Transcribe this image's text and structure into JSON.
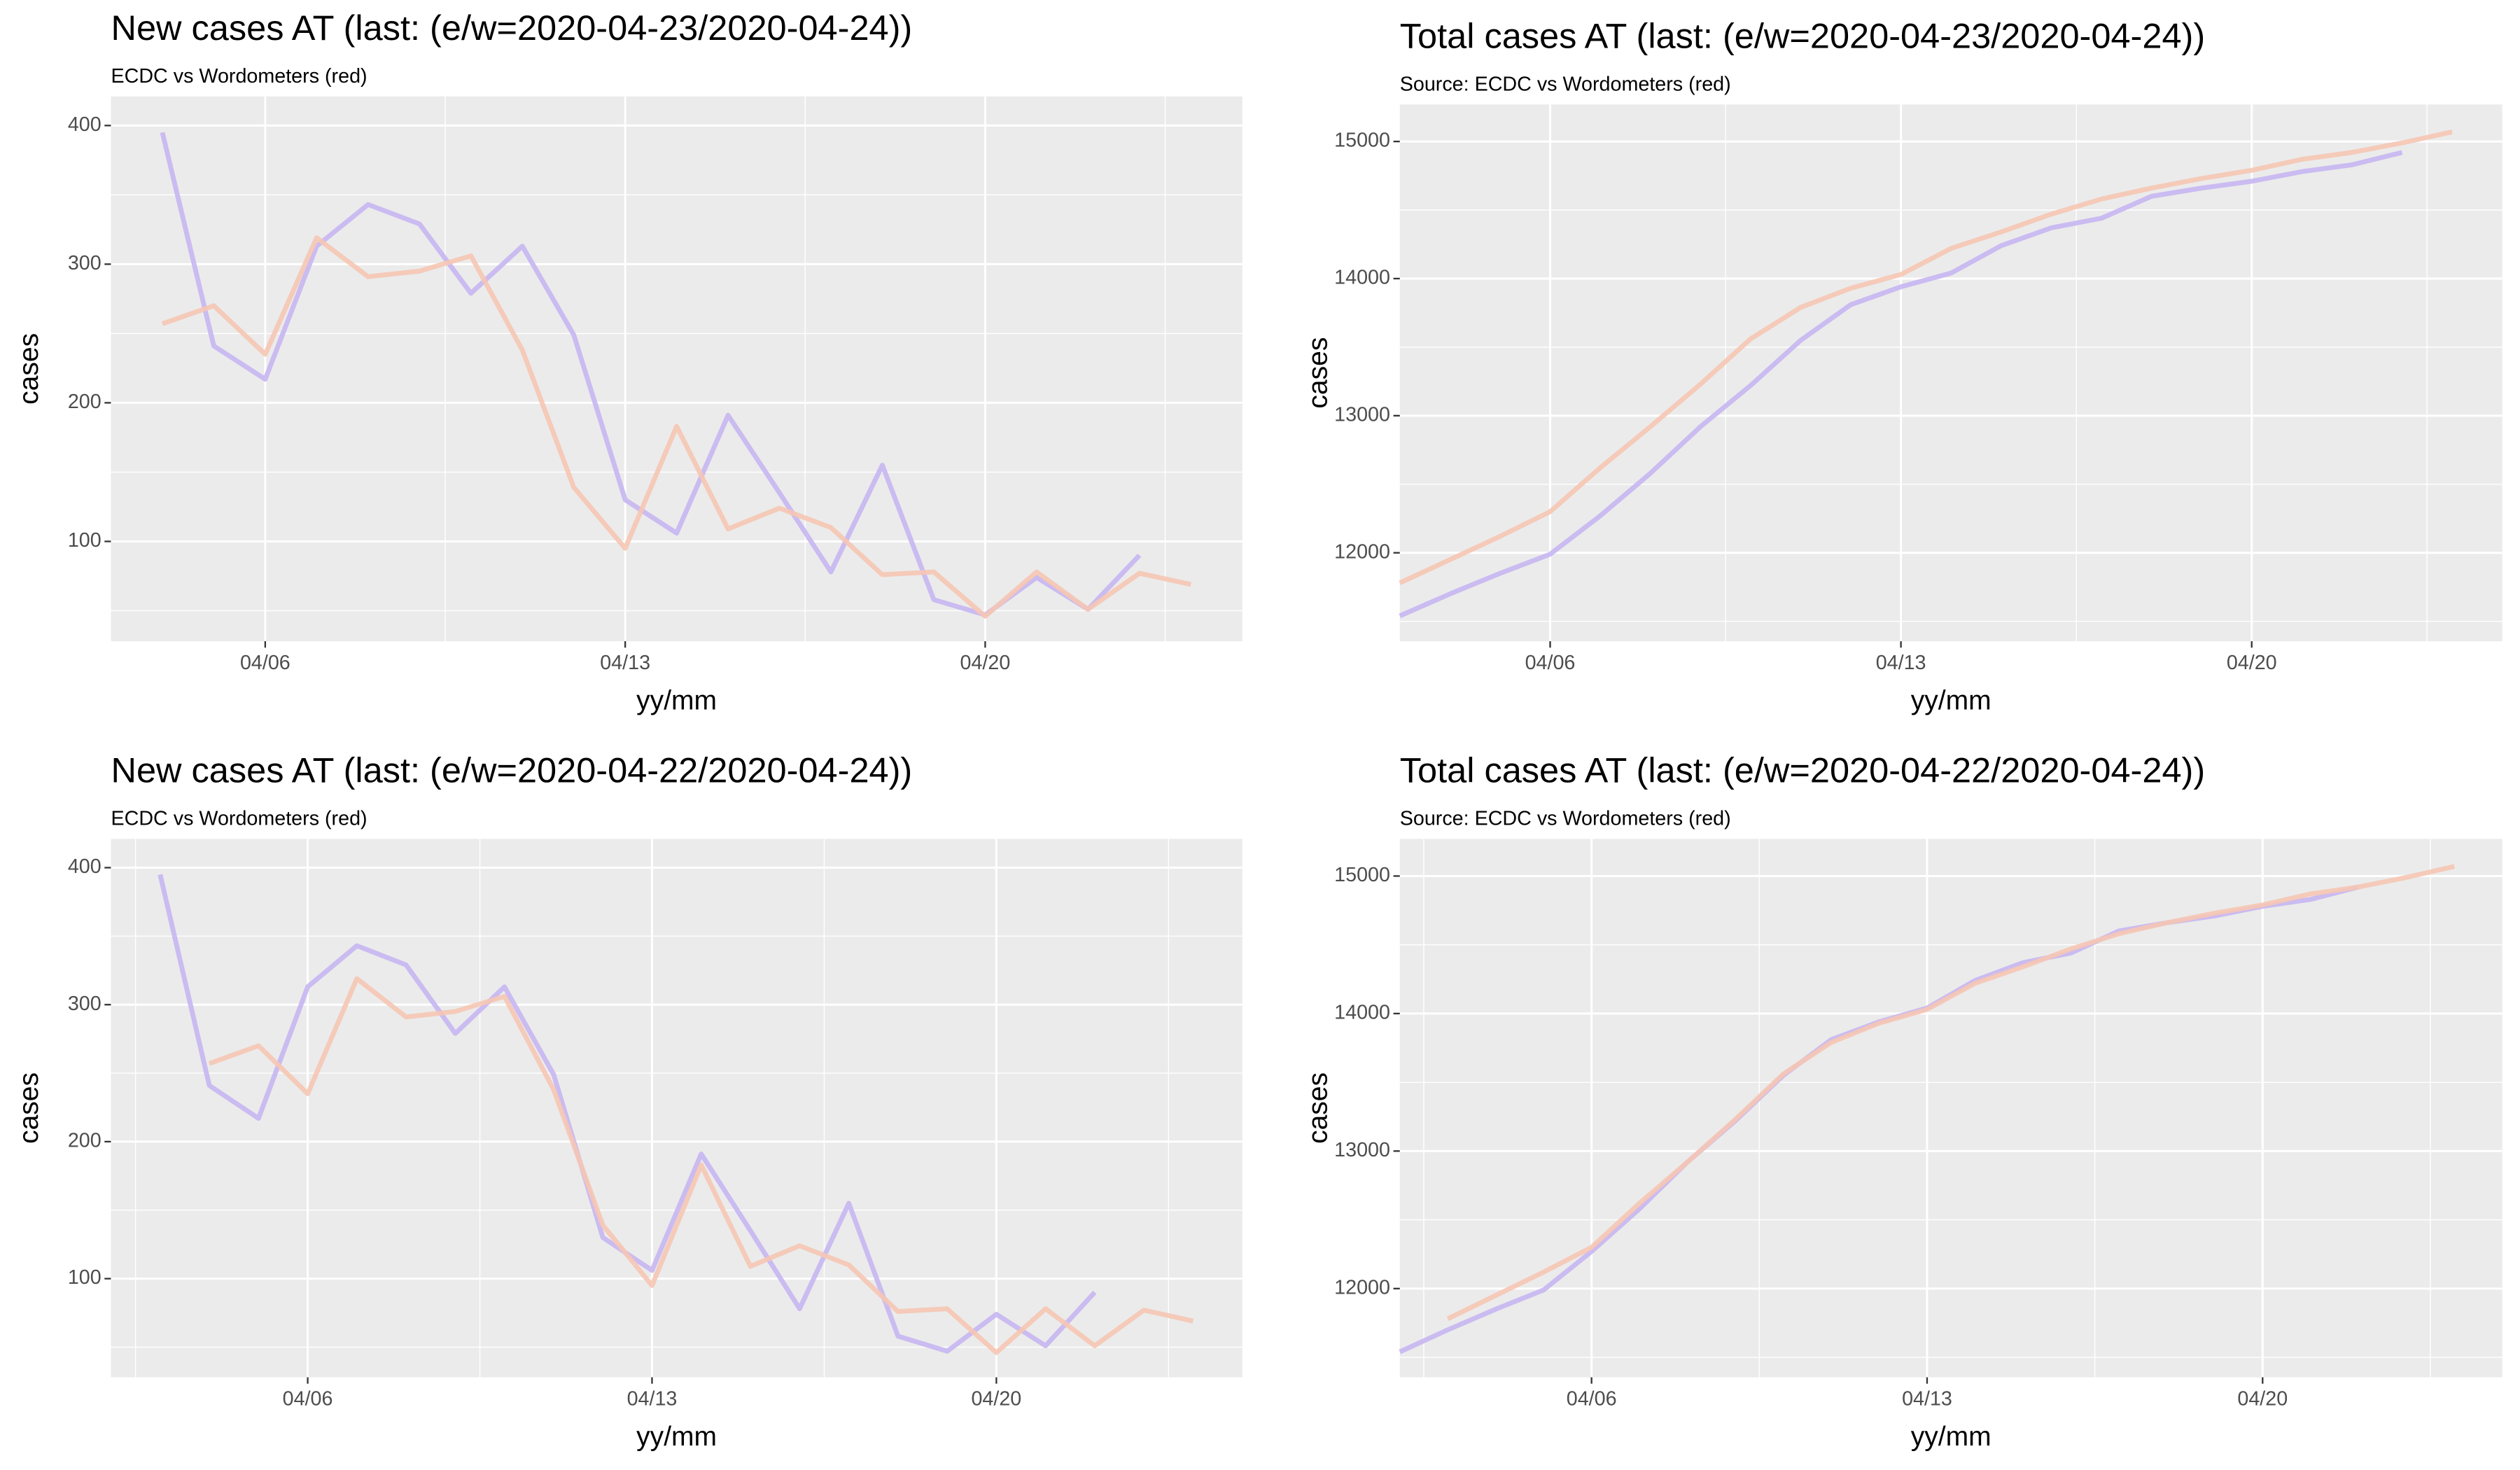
{
  "chart_data": [
    {
      "type": "line",
      "title": "New cases AT (last: (e/w=2020-04-23/2020-04-24))",
      "subtitle": "ECDC vs Wordometers (red)",
      "xlabel": "yy/mm",
      "ylabel": "cases",
      "xlim": [
        3,
        25
      ],
      "xticks": [
        {
          "value": 6,
          "label": "04/06"
        },
        {
          "value": 13,
          "label": "04/13"
        },
        {
          "value": 20,
          "label": "04/20"
        }
      ],
      "ylim": [
        28,
        421
      ],
      "yticks": [
        100,
        200,
        300,
        400
      ],
      "grid": true,
      "series": [
        {
          "color": "#c7b6f2",
          "x": [
            4,
            5,
            6,
            7,
            8,
            9,
            10,
            11,
            12,
            13,
            14,
            15,
            16,
            17,
            18,
            19,
            20,
            21,
            22,
            23
          ],
          "values": [
            395,
            241,
            217,
            313,
            343,
            329,
            279,
            313,
            249,
            130,
            106,
            191,
            135,
            78,
            155,
            58,
            47,
            74,
            51,
            90
          ]
        },
        {
          "color": "#f6c6b4",
          "x": [
            4,
            5,
            6,
            7,
            8,
            9,
            10,
            11,
            12,
            13,
            14,
            15,
            16,
            17,
            18,
            19,
            20,
            21,
            22,
            23,
            24
          ],
          "values": [
            257,
            270,
            235,
            319,
            291,
            295,
            306,
            238,
            139,
            95,
            183,
            109,
            124,
            110,
            76,
            78,
            46,
            78,
            51,
            77,
            69
          ]
        }
      ]
    },
    {
      "type": "line",
      "title": "Total cases AT (last: (e/w=2020-04-23/2020-04-24))",
      "subtitle": "Source: ECDC vs Wordometers (red)",
      "xlabel": "yy/mm",
      "ylabel": "cases",
      "xlim": [
        3,
        25
      ],
      "xticks": [
        {
          "value": 6,
          "label": "04/06"
        },
        {
          "value": 13,
          "label": "04/13"
        },
        {
          "value": 20,
          "label": "04/20"
        }
      ],
      "ylim": [
        11355,
        15270
      ],
      "yticks": [
        12000,
        13000,
        14000,
        15000
      ],
      "grid": true,
      "series": [
        {
          "color": "#c7b6f2",
          "x": [
            3,
            4,
            5,
            6,
            7,
            8,
            9,
            10,
            11,
            12,
            13,
            14,
            15,
            16,
            17,
            18,
            19,
            20,
            21,
            22,
            23
          ],
          "values": [
            11540,
            11700,
            11850,
            11990,
            12270,
            12580,
            12920,
            13220,
            13550,
            13810,
            13940,
            14040,
            14240,
            14370,
            14440,
            14600,
            14660,
            14710,
            14780,
            14830,
            14920
          ]
        },
        {
          "color": "#f6c6b4",
          "x": [
            3,
            4,
            5,
            6,
            7,
            8,
            9,
            10,
            11,
            12,
            13,
            14,
            15,
            16,
            17,
            18,
            19,
            20,
            21,
            22,
            23,
            24
          ],
          "values": [
            11780,
            11950,
            12120,
            12300,
            12620,
            12920,
            13230,
            13560,
            13790,
            13930,
            14030,
            14220,
            14340,
            14470,
            14580,
            14660,
            14730,
            14790,
            14870,
            14920,
            14990,
            15070
          ]
        }
      ]
    },
    {
      "type": "line",
      "title": "New cases AT (last: (e/w=2020-04-22/2020-04-24))",
      "subtitle": "ECDC vs Wordometers (red)",
      "xlabel": "yy/mm",
      "ylabel": "cases",
      "xlim": [
        2,
        25
      ],
      "xticks": [
        {
          "value": 6,
          "label": "04/06"
        },
        {
          "value": 13,
          "label": "04/13"
        },
        {
          "value": 20,
          "label": "04/20"
        }
      ],
      "ylim": [
        28,
        421
      ],
      "yticks": [
        100,
        200,
        300,
        400
      ],
      "grid": true,
      "series": [
        {
          "color": "#c7b6f2",
          "x": [
            3,
            4,
            5,
            6,
            7,
            8,
            9,
            10,
            11,
            12,
            13,
            14,
            15,
            16,
            17,
            18,
            19,
            20,
            21,
            22
          ],
          "values": [
            395,
            241,
            217,
            313,
            343,
            329,
            279,
            313,
            249,
            130,
            106,
            191,
            135,
            78,
            155,
            58,
            47,
            74,
            51,
            90
          ]
        },
        {
          "color": "#f6c6b4",
          "x": [
            4,
            5,
            6,
            7,
            8,
            9,
            10,
            11,
            12,
            13,
            14,
            15,
            16,
            17,
            18,
            19,
            20,
            21,
            22,
            23,
            24
          ],
          "values": [
            257,
            270,
            235,
            319,
            291,
            295,
            306,
            238,
            139,
            95,
            183,
            109,
            124,
            110,
            76,
            78,
            46,
            78,
            51,
            77,
            69
          ]
        }
      ]
    },
    {
      "type": "line",
      "title": "Total cases AT (last: (e/w=2020-04-22/2020-04-24))",
      "subtitle": "Source: ECDC vs Wordometers (red)",
      "xlabel": "yy/mm",
      "ylabel": "cases",
      "xlim": [
        2,
        25
      ],
      "xticks": [
        {
          "value": 6,
          "label": "04/06"
        },
        {
          "value": 13,
          "label": "04/13"
        },
        {
          "value": 20,
          "label": "04/20"
        }
      ],
      "ylim": [
        11355,
        15270
      ],
      "yticks": [
        12000,
        13000,
        14000,
        15000
      ],
      "grid": true,
      "series": [
        {
          "color": "#c7b6f2",
          "x": [
            2,
            3,
            4,
            5,
            6,
            7,
            8,
            9,
            10,
            11,
            12,
            13,
            14,
            15,
            16,
            17,
            18,
            19,
            20,
            21,
            22
          ],
          "values": [
            11540,
            11700,
            11850,
            11990,
            12270,
            12580,
            12920,
            13220,
            13550,
            13810,
            13940,
            14040,
            14240,
            14370,
            14440,
            14600,
            14660,
            14710,
            14780,
            14830,
            14920
          ]
        },
        {
          "color": "#f6c6b4",
          "x": [
            3,
            4,
            5,
            6,
            7,
            8,
            9,
            10,
            11,
            12,
            13,
            14,
            15,
            16,
            17,
            18,
            19,
            20,
            21,
            22,
            23,
            24
          ],
          "values": [
            11780,
            11950,
            12120,
            12300,
            12620,
            12920,
            13230,
            13560,
            13790,
            13930,
            14030,
            14220,
            14340,
            14470,
            14580,
            14660,
            14730,
            14790,
            14870,
            14920,
            14990,
            15070
          ]
        }
      ]
    }
  ]
}
